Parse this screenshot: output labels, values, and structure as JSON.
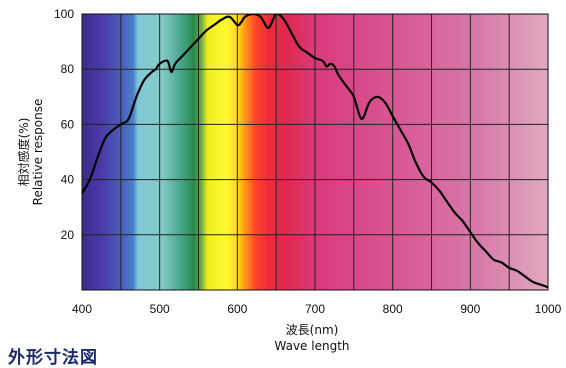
{
  "chart_data": {
    "type": "line",
    "title": "",
    "xlabel": "波長(nm)",
    "xlabel_en": "Wave length",
    "ylabel": "相対感度(%)",
    "ylabel_en": "Relative response",
    "xlim": [
      400,
      1000
    ],
    "ylim": [
      0,
      100
    ],
    "x_ticks": [
      "400",
      "500",
      "600",
      "700",
      "800",
      "900",
      "1000"
    ],
    "y_ticks": [
      "20",
      "40",
      "60",
      "80",
      "100"
    ],
    "grid": true,
    "background": "visible-spectrum color bands",
    "series": [
      {
        "color": "#000000",
        "x": [
          400,
          410,
          420,
          430,
          440,
          450,
          460,
          470,
          480,
          490,
          495,
          500,
          510,
          515,
          520,
          530,
          540,
          550,
          560,
          570,
          580,
          590,
          600,
          605,
          610,
          620,
          630,
          640,
          650,
          660,
          670,
          680,
          690,
          700,
          710,
          715,
          720,
          725,
          730,
          740,
          750,
          760,
          770,
          780,
          790,
          800,
          810,
          820,
          830,
          840,
          850,
          860,
          870,
          880,
          890,
          900,
          910,
          920,
          930,
          940,
          950,
          960,
          970,
          980,
          990,
          1000
        ],
        "y": [
          35,
          40,
          48,
          55,
          58,
          60,
          62,
          70,
          76,
          79,
          80,
          82,
          83,
          79,
          82,
          85,
          88,
          91,
          94,
          96,
          98,
          99,
          96,
          97,
          99,
          100,
          99,
          95,
          100,
          98,
          93,
          88,
          86,
          84,
          83,
          81,
          82,
          81,
          78,
          74,
          70,
          62,
          68,
          70,
          68,
          63,
          58,
          53,
          46,
          41,
          39,
          36,
          32,
          28,
          25,
          21,
          17,
          14,
          11,
          10,
          8,
          7,
          5,
          3,
          2,
          1
        ]
      }
    ]
  },
  "heading": "外形寸法図"
}
